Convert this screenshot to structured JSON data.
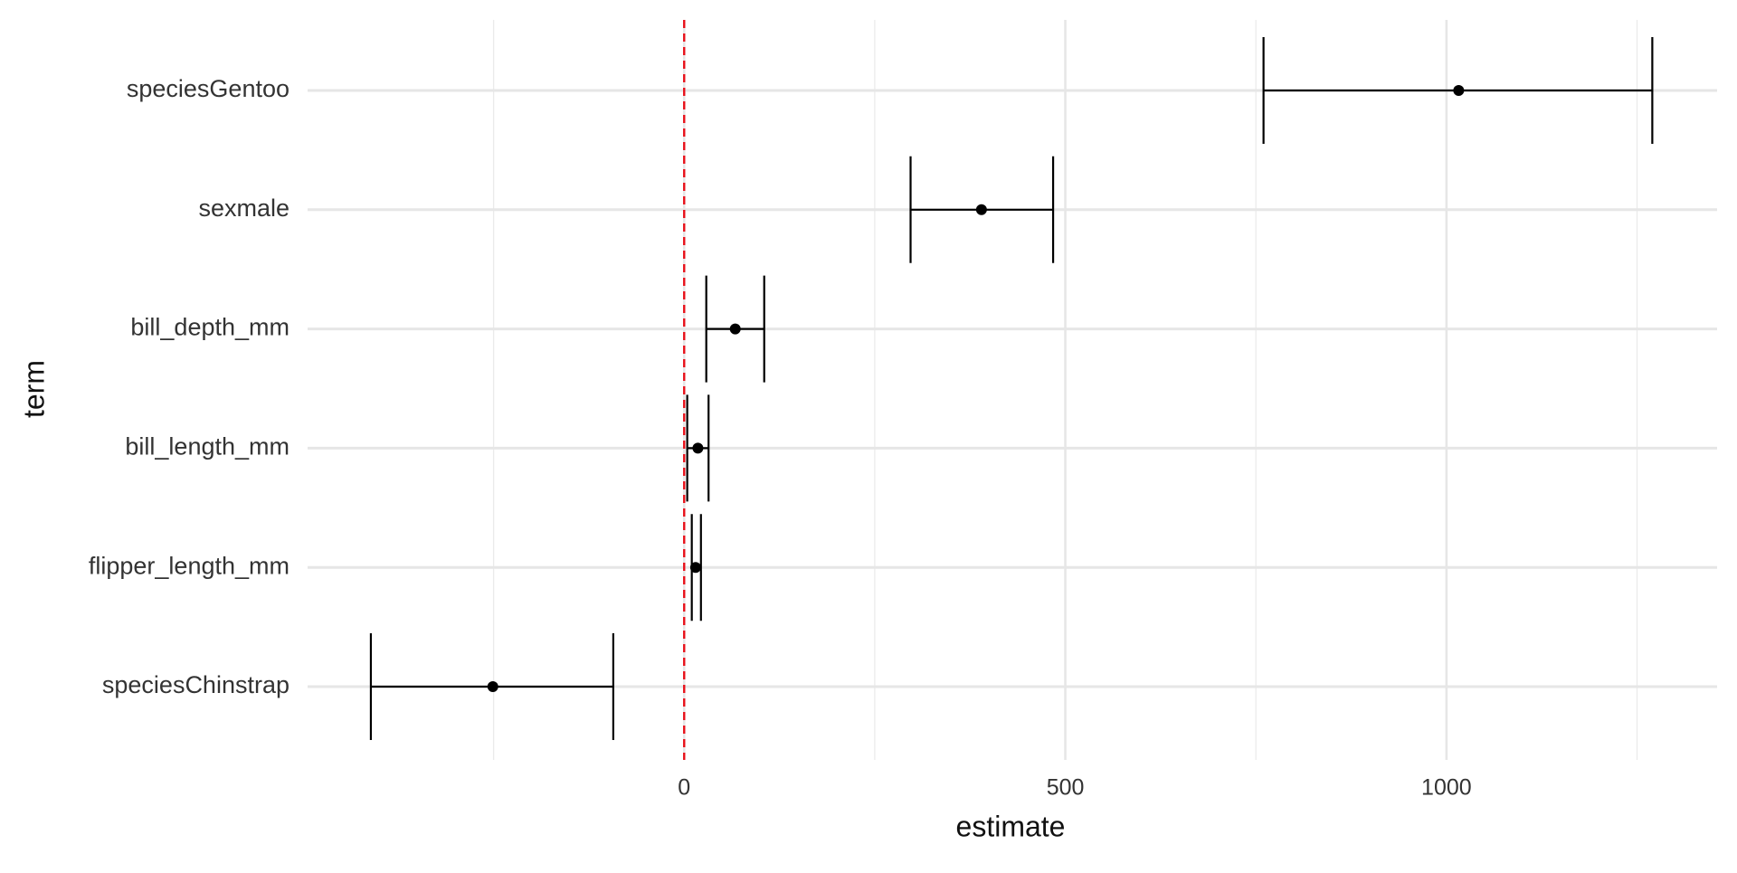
{
  "chart_data": {
    "type": "pointrange",
    "x_label": "estimate",
    "y_label": "term",
    "categories": [
      "speciesGentoo",
      "sexmale",
      "bill_depth_mm",
      "bill_length_mm",
      "flipper_length_mm",
      "speciesChinstrap"
    ],
    "values": [
      1016,
      390,
      67,
      18,
      15,
      -251
    ],
    "low": [
      760,
      297,
      29,
      4,
      10,
      -411
    ],
    "high": [
      1270,
      484,
      105,
      32,
      22,
      -93
    ],
    "color": "#000000",
    "xlim": [
      -494,
      1355
    ],
    "xticks": [
      0,
      500,
      1000
    ],
    "xminor": [
      -250,
      250,
      750,
      1250
    ],
    "grid": true,
    "reference_line": {
      "value": 0,
      "color": "#e8101a"
    }
  }
}
